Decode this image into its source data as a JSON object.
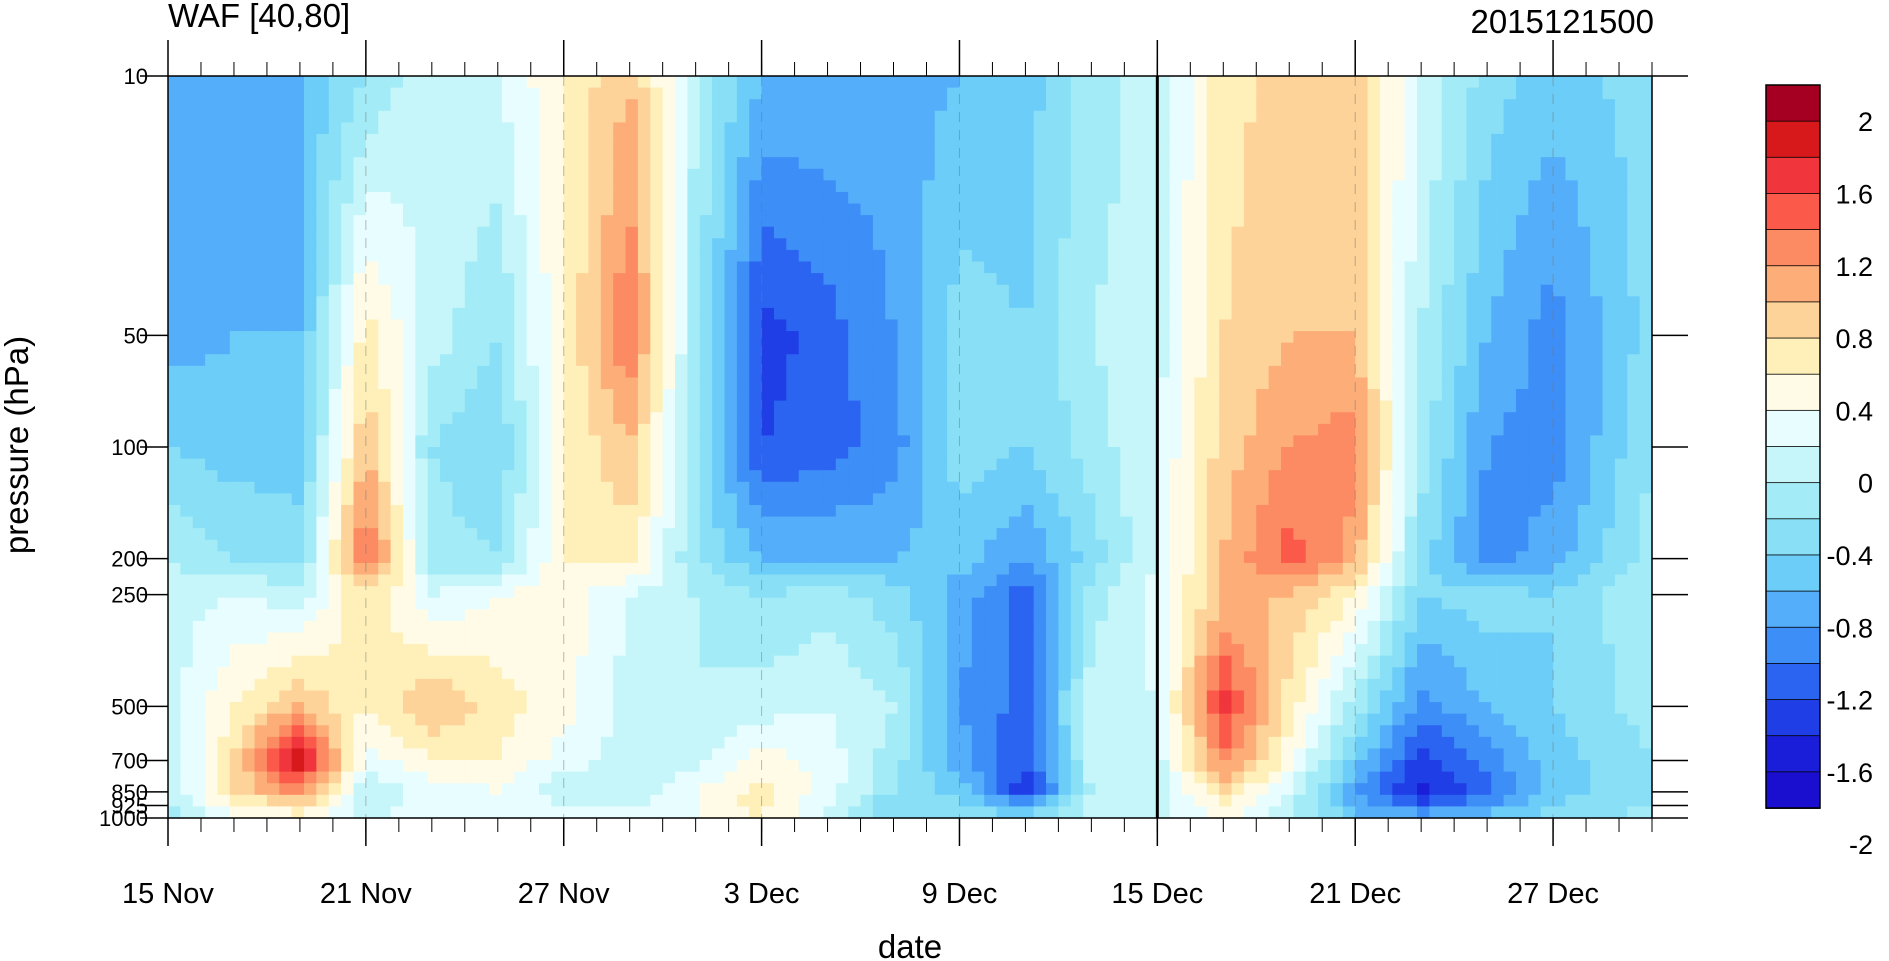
{
  "chart_data": {
    "type": "heatmap",
    "title": "WAF [40,80]",
    "right_title": "2015121500",
    "xlabel": "date",
    "ylabel": "pressure (hPa)",
    "x_ticks": [
      "15 Nov",
      "21 Nov",
      "27 Nov",
      "3 Dec",
      "9 Dec",
      "15 Dec",
      "21 Dec",
      "27 Dec"
    ],
    "x_range_days": [
      "15 Nov",
      "30 Dec"
    ],
    "y_scale": "log",
    "y_range": [
      1000,
      10
    ],
    "y_ticks": [
      10,
      50,
      100,
      200,
      250,
      500,
      700,
      850,
      925,
      1000
    ],
    "y_tick_labels": [
      "10",
      "50",
      "100",
      "200",
      "250",
      "500",
      "700",
      "850",
      "925",
      "1000"
    ],
    "reference_line": "15 Dec",
    "colorbar": {
      "labels": [
        "2",
        "1.6",
        "1.2",
        "0.8",
        "0.4",
        "0",
        "-0.4",
        "-0.8",
        "-1.2",
        "-1.6",
        "-2"
      ],
      "colors": [
        "#a50021",
        "#d7191c",
        "#f0353d",
        "#fb5a4a",
        "#fc8a62",
        "#fdae78",
        "#fdd39a",
        "#fef0b8",
        "#fffbe6",
        "#e8fdff",
        "#c6f6fa",
        "#a3ecf7",
        "#88dff6",
        "#6ccdf8",
        "#55aefa",
        "#3d8ef7",
        "#2c64f2",
        "#1f3ee6",
        "#1a1ed9",
        "#1a0fcf"
      ]
    },
    "levels": [
      -2.2,
      -2.0,
      -1.8,
      -1.6,
      -1.4,
      -1.2,
      -1.0,
      -0.8,
      -0.6,
      -0.4,
      -0.2,
      0,
      0.2,
      0.4,
      0.6,
      0.8,
      1.0,
      1.2,
      1.4,
      1.6,
      1.8
    ],
    "columns": [
      {
        "date": "15 Nov",
        "vals": [
          -1.0,
          -1.1,
          -0.8,
          -0.4,
          -0.3,
          -0.3,
          -0.4,
          -0.4,
          -0.5,
          -0.5
        ]
      },
      {
        "date": "17 Nov",
        "vals": [
          -1.0,
          -1.0,
          -0.9,
          -0.6,
          -0.2,
          0.2,
          0.4,
          0.4,
          0.2,
          -0.1
        ]
      },
      {
        "date": "19 Nov",
        "vals": [
          -1.0,
          -1.0,
          -0.9,
          -0.7,
          -0.3,
          0.6,
          1.6,
          0.9,
          0.4,
          0.1
        ]
      },
      {
        "date": "21 Nov",
        "vals": [
          -0.6,
          0.3,
          0.6,
          1.1,
          0.4,
          0.2,
          -0.1,
          -0.4,
          -0.3,
          -0.2
        ]
      },
      {
        "date": "23 Nov",
        "vals": [
          -0.2,
          -0.3,
          -0.6,
          -0.5,
          -0.2,
          0.6,
          0.2,
          -0.1,
          -0.1,
          -0.1
        ]
      },
      {
        "date": "25 Nov",
        "vals": [
          -0.2,
          -0.6,
          -0.8,
          -0.6,
          0.0,
          0.3,
          0.2,
          0.0,
          0.0,
          -0.1
        ]
      },
      {
        "date": "27 Nov",
        "vals": [
          0.2,
          0.2,
          0.2,
          0.2,
          0.1,
          0.1,
          -0.1,
          -0.4,
          -0.2,
          -0.1
        ]
      },
      {
        "date": "29 Nov",
        "vals": [
          0.6,
          1.0,
          0.6,
          0.3,
          -0.2,
          -0.3,
          -0.3,
          -0.4,
          -0.2,
          -0.2
        ]
      },
      {
        "date": "1 Dec",
        "vals": [
          -0.4,
          -0.5,
          -0.6,
          -0.6,
          -0.4,
          -0.4,
          -0.3,
          0.0,
          0.0,
          0.0
        ]
      },
      {
        "date": "3 Dec",
        "vals": [
          -1.0,
          -1.7,
          -1.6,
          -1.0,
          -0.6,
          -0.3,
          0.1,
          0.3,
          0.3,
          0.2
        ]
      },
      {
        "date": "5 Dec",
        "vals": [
          -1.0,
          -1.5,
          -1.5,
          -1.0,
          -0.5,
          -0.2,
          -0.1,
          -0.1,
          -0.2,
          -0.3
        ]
      },
      {
        "date": "7 Dec",
        "vals": [
          -1.1,
          -1.2,
          -1.3,
          -1.0,
          -0.7,
          -0.4,
          -0.5,
          -0.6,
          -0.8,
          -0.7
        ]
      },
      {
        "date": "9 Dec",
        "vals": [
          -1.0,
          -0.7,
          -0.7,
          -0.9,
          -1.1,
          -1.2,
          -1.1,
          -0.9,
          -0.7,
          -0.6
        ]
      },
      {
        "date": "11 Dec",
        "vals": [
          -0.9,
          -0.8,
          -0.8,
          -1.2,
          -1.5,
          -1.5,
          -1.6,
          -1.8,
          -1.1,
          -0.7
        ]
      },
      {
        "date": "13 Dec",
        "vals": [
          -0.5,
          -0.4,
          -0.5,
          -0.7,
          -0.5,
          -0.3,
          -0.3,
          -0.4,
          -0.3,
          -0.3
        ]
      },
      {
        "date": "15 Dec",
        "vals": [
          -0.3,
          -0.3,
          -0.2,
          -0.2,
          -0.1,
          -0.2,
          -0.3,
          -0.4,
          -0.3,
          -0.2
        ]
      },
      {
        "date": "17 Dec",
        "vals": [
          0.3,
          0.4,
          0.5,
          0.6,
          0.6,
          1.3,
          0.9,
          0.4,
          0.2,
          0.0
        ]
      },
      {
        "date": "19 Dec",
        "vals": [
          0.5,
          0.6,
          0.8,
          1.1,
          0.6,
          0.3,
          0.1,
          -0.2,
          -0.3,
          -0.3
        ]
      },
      {
        "date": "21 Dec",
        "vals": [
          0.5,
          0.6,
          0.9,
          0.7,
          0.2,
          -0.5,
          -0.9,
          -1.2,
          -1.1,
          -0.9
        ]
      },
      {
        "date": "23 Dec",
        "vals": [
          -0.2,
          -0.4,
          -0.5,
          -0.7,
          -0.8,
          -1.3,
          -1.7,
          -1.9,
          -1.5,
          -1.0
        ]
      },
      {
        "date": "25 Dec",
        "vals": [
          -0.7,
          -1.0,
          -1.2,
          -1.3,
          -0.7,
          -1.0,
          -1.3,
          -1.5,
          -1.2,
          -0.9
        ]
      },
      {
        "date": "27 Dec",
        "vals": [
          -0.9,
          -1.3,
          -1.3,
          -1.1,
          -0.8,
          -0.8,
          -0.9,
          -0.9,
          -0.8,
          -0.7
        ]
      },
      {
        "date": "30 Dec",
        "vals": [
          -0.7,
          -0.7,
          -0.6,
          -0.5,
          -0.4,
          -0.5,
          -0.6,
          -0.6,
          -0.6,
          -0.5
        ]
      }
    ],
    "grid": false,
    "legend": "colorbar-right"
  }
}
